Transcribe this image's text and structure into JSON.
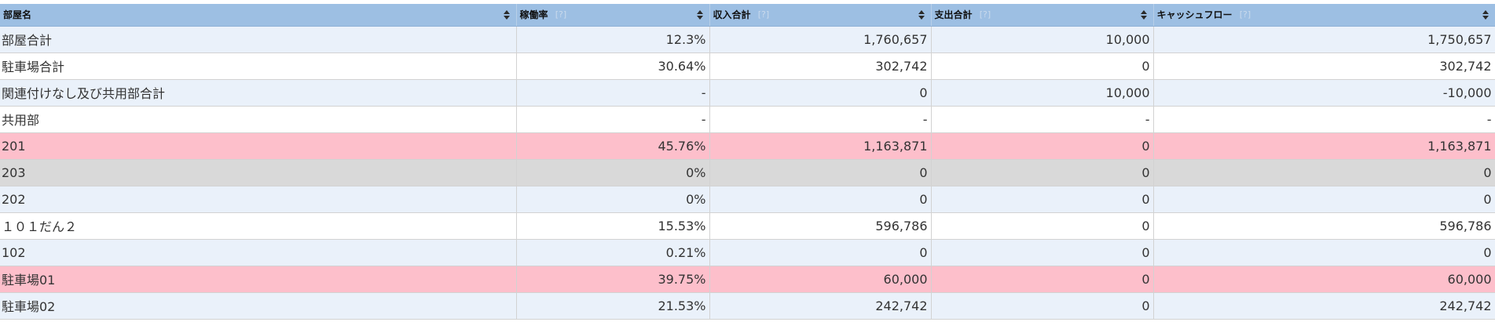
{
  "table": {
    "columns": [
      {
        "label": "部屋名",
        "help": ""
      },
      {
        "label": "稼働率",
        "help": "[?]"
      },
      {
        "label": "収入合計",
        "help": "[?]"
      },
      {
        "label": "支出合計",
        "help": "[?]"
      },
      {
        "label": "キャッシュフロー",
        "help": "[?]"
      }
    ],
    "rows": [
      {
        "name": "部屋合計",
        "rate": "12.3%",
        "income": "1,760,657",
        "expense": "10,000",
        "cashflow": "1,750,657",
        "bg": "#eaf1fa"
      },
      {
        "name": "駐車場合計",
        "rate": "30.64%",
        "income": "302,742",
        "expense": "0",
        "cashflow": "302,742",
        "bg": "#ffffff"
      },
      {
        "name": "関連付けなし及び共用部合計",
        "rate": "-",
        "income": "0",
        "expense": "10,000",
        "cashflow": "-10,000",
        "bg": "#eaf1fa"
      },
      {
        "name": "共用部",
        "rate": "-",
        "income": "-",
        "expense": "-",
        "cashflow": "-",
        "bg": "#ffffff"
      },
      {
        "name": "201",
        "rate": "45.76%",
        "income": "1,163,871",
        "expense": "0",
        "cashflow": "1,163,871",
        "bg": "#fdbfcb"
      },
      {
        "name": "203",
        "rate": "0%",
        "income": "0",
        "expense": "0",
        "cashflow": "0",
        "bg": "#d9d9d9"
      },
      {
        "name": "202",
        "rate": "0%",
        "income": "0",
        "expense": "0",
        "cashflow": "0",
        "bg": "#eaf1fa"
      },
      {
        "name": "１０１だん２",
        "rate": "15.53%",
        "income": "596,786",
        "expense": "0",
        "cashflow": "596,786",
        "bg": "#ffffff"
      },
      {
        "name": "102",
        "rate": "0.21%",
        "income": "0",
        "expense": "0",
        "cashflow": "0",
        "bg": "#eaf1fa"
      },
      {
        "name": "駐車場01",
        "rate": "39.75%",
        "income": "60,000",
        "expense": "0",
        "cashflow": "60,000",
        "bg": "#fdbfcb"
      },
      {
        "name": "駐車場02",
        "rate": "21.53%",
        "income": "242,742",
        "expense": "0",
        "cashflow": "242,742",
        "bg": "#eaf1fa"
      }
    ]
  },
  "icons": {
    "sort": "sort-icon"
  },
  "colors": {
    "header_bg": "#9dbfe3",
    "row_blue": "#eaf1fa",
    "row_white": "#ffffff",
    "row_pink": "#fdbfcb",
    "row_gray": "#d9d9d9"
  }
}
